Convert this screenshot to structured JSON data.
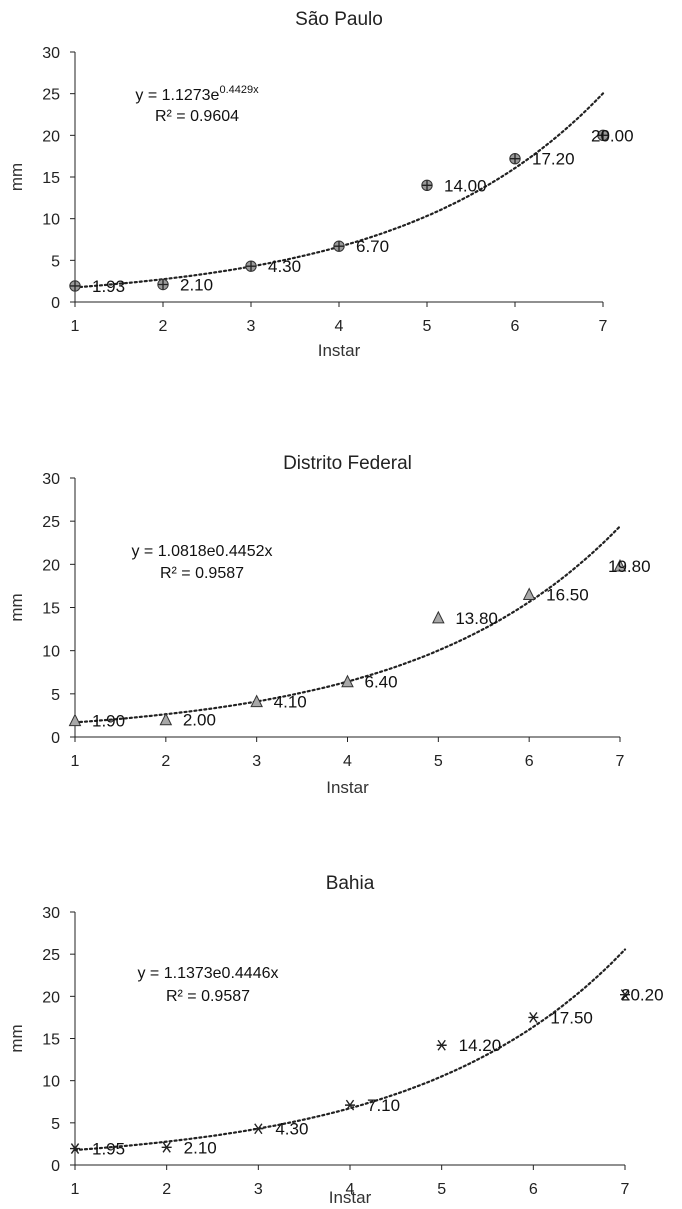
{
  "chart_data": [
    {
      "type": "scatter",
      "title": "São Paulo",
      "xlabel": "Instar",
      "ylabel": "mm",
      "xlim": [
        1,
        7
      ],
      "ylim": [
        0,
        30
      ],
      "x_ticks": [
        "1",
        "2",
        "3",
        "4",
        "5",
        "6",
        "7"
      ],
      "y_ticks": [
        "0",
        "5",
        "10",
        "15",
        "20",
        "25",
        "30"
      ],
      "marker": "circle-plus",
      "series": [
        {
          "x": [
            1,
            2,
            3,
            4,
            5,
            6,
            7
          ],
          "y": [
            1.93,
            2.1,
            4.3,
            6.7,
            14.0,
            17.2,
            20.0
          ],
          "labels": [
            "1.93",
            "2.10",
            "4.30",
            "6.70",
            "14.00",
            "17.20",
            "20.00"
          ]
        }
      ],
      "trendline": {
        "type": "exponential",
        "a": 1.1273,
        "b": 0.4429,
        "equation_base": "y = 1.1273e",
        "equation_exp": "0.4429x",
        "r2": "R² = 0.9604"
      },
      "grid": false,
      "legend": "none"
    },
    {
      "type": "scatter",
      "title": "Distrito Federal",
      "xlabel": "Instar",
      "ylabel": "mm",
      "xlim": [
        1,
        7
      ],
      "ylim": [
        0,
        30
      ],
      "x_ticks": [
        "1",
        "2",
        "3",
        "4",
        "5",
        "6",
        "7"
      ],
      "y_ticks": [
        "0",
        "5",
        "10",
        "15",
        "20",
        "25",
        "30"
      ],
      "marker": "triangle",
      "series": [
        {
          "x": [
            1,
            2,
            3,
            4,
            5,
            6,
            7
          ],
          "y": [
            1.9,
            2.0,
            4.1,
            6.4,
            13.8,
            16.5,
            19.8
          ],
          "labels": [
            "1.90",
            "2.00",
            "4.10",
            "6.40",
            "13.80",
            "16.50",
            "19.80"
          ]
        }
      ],
      "trendline": {
        "type": "exponential",
        "a": 1.0818,
        "b": 0.4452,
        "equation": "y = 1.0818e0.4452x",
        "r2": "R² = 0.9587"
      },
      "grid": false,
      "legend": "none"
    },
    {
      "type": "scatter",
      "title": "Bahia",
      "xlabel": "Instar",
      "ylabel": "mm",
      "xlim": [
        1,
        7
      ],
      "ylim": [
        0,
        30
      ],
      "x_ticks": [
        "1",
        "2",
        "3",
        "4",
        "5",
        "6",
        "7"
      ],
      "y_ticks": [
        "0",
        "5",
        "10",
        "15",
        "20",
        "25",
        "30"
      ],
      "marker": "asterisk",
      "series": [
        {
          "x": [
            1,
            2,
            3,
            4,
            5,
            6,
            7
          ],
          "y": [
            1.95,
            2.1,
            4.3,
            7.1,
            14.2,
            17.5,
            20.2
          ],
          "labels": [
            "1.95",
            "2.10",
            "4.30",
            "7.10",
            "14.20",
            "17.50",
            "20.20"
          ]
        }
      ],
      "trendline": {
        "type": "exponential",
        "a": 1.1373,
        "b": 0.4446,
        "equation": "y = 1.1373e0.4446x",
        "r2": "R² = 0.9587"
      },
      "grid": false,
      "legend": "none"
    }
  ]
}
